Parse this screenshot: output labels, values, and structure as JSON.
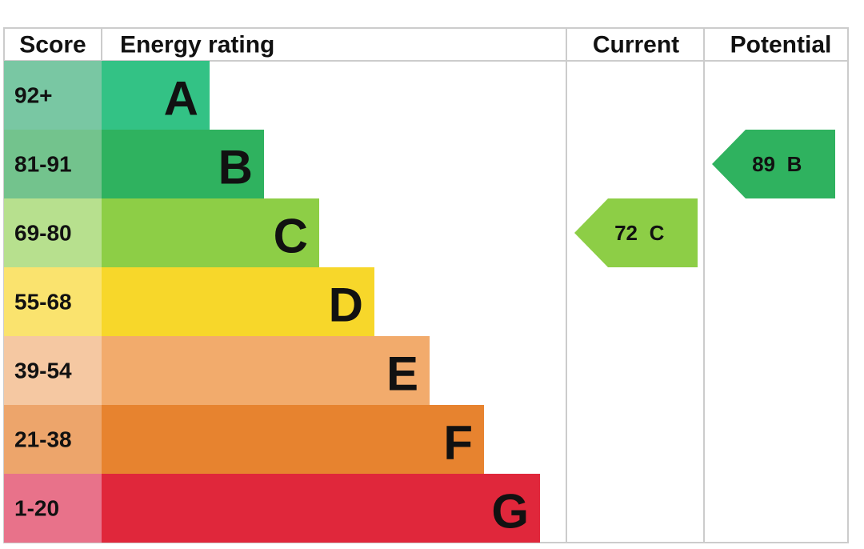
{
  "columns": [
    "Score",
    "Energy rating",
    "Current",
    "Potential"
  ],
  "bands": [
    {
      "score": "92+",
      "letter": "A",
      "color": "#33c285",
      "score_color": "#79c7a3"
    },
    {
      "score": "81-91",
      "letter": "B",
      "color": "#2fb25f",
      "score_color": "#73c38d"
    },
    {
      "score": "69-80",
      "letter": "C",
      "color": "#8dce46",
      "score_color": "#b7e08e"
    },
    {
      "score": "55-68",
      "letter": "D",
      "color": "#f7d72a",
      "score_color": "#fae36e"
    },
    {
      "score": "39-54",
      "letter": "E",
      "color": "#f2ab6c",
      "score_color": "#f5c8a2"
    },
    {
      "score": "21-38",
      "letter": "F",
      "color": "#e7832f",
      "score_color": "#eda56b"
    },
    {
      "score": "1-20",
      "letter": "G",
      "color": "#e0273b",
      "score_color": "#e8728a"
    }
  ],
  "current": {
    "score": 72,
    "letter": "C"
  },
  "potential": {
    "score": 89,
    "letter": "B"
  }
}
